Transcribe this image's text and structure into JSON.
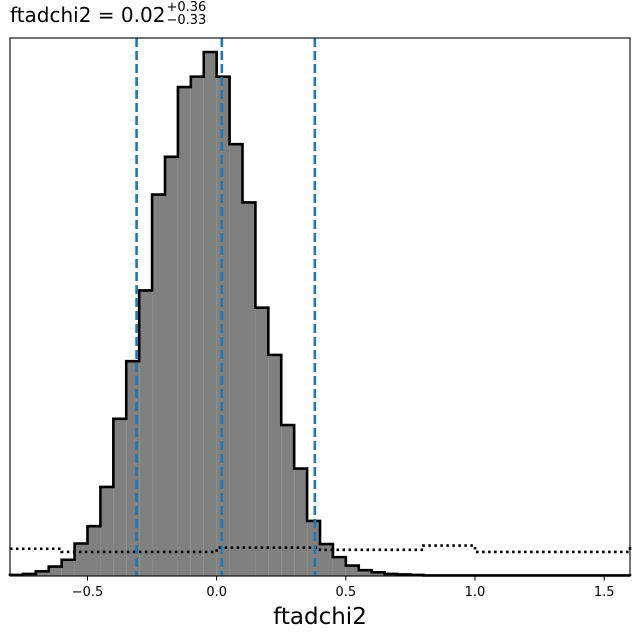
{
  "chart_data": {
    "type": "histogram",
    "title": {
      "name": "ftadchi2 = ",
      "value": "0.02",
      "upper_err": "+0.36",
      "lower_err": "−0.33"
    },
    "xlabel": "ftadchi2",
    "ylabel": "",
    "xlim": [
      -0.8,
      1.6
    ],
    "ylim": [
      0,
      1.0
    ],
    "yticks_visible": false,
    "xticks": [
      {
        "value": -0.5,
        "label": "−0.5"
      },
      {
        "value": 0.0,
        "label": "0.0"
      },
      {
        "value": 0.5,
        "label": "0.5"
      },
      {
        "value": 1.0,
        "label": "1.0"
      },
      {
        "value": 1.5,
        "label": "1.5"
      }
    ],
    "bin_edges": [
      -0.8,
      -0.75,
      -0.7,
      -0.65,
      -0.6,
      -0.55,
      -0.5,
      -0.45,
      -0.4,
      -0.35,
      -0.3,
      -0.25,
      -0.2,
      -0.15,
      -0.1,
      -0.05,
      0.0,
      0.05,
      0.1,
      0.15,
      0.2,
      0.25,
      0.3,
      0.35,
      0.4,
      0.45,
      0.5,
      0.55,
      0.6,
      0.65,
      0.7,
      0.75,
      0.8,
      0.85,
      0.9,
      0.95,
      1.0,
      1.05,
      1.1,
      1.15,
      1.2,
      1.25,
      1.3,
      1.35,
      1.4,
      1.45,
      1.5,
      1.55,
      1.6
    ],
    "series": [
      {
        "style": "filled",
        "fill": "#808080",
        "edgecolor": "#000000",
        "counts": [
          0.002,
          0.004,
          0.009,
          0.018,
          0.031,
          0.062,
          0.095,
          0.17,
          0.3,
          0.41,
          0.545,
          0.728,
          0.8,
          0.933,
          0.953,
          1.0,
          0.953,
          0.824,
          0.713,
          0.512,
          0.422,
          0.288,
          0.205,
          0.105,
          0.061,
          0.036,
          0.02,
          0.011,
          0.007,
          0.004,
          0.003,
          0.002,
          0.001,
          0.001,
          0.001,
          0.001,
          0.001,
          0.001,
          0.001,
          0.001,
          0.001,
          0.001,
          0.001,
          0.001,
          0.001,
          0.001,
          0.001,
          0.001
        ]
      },
      {
        "style": "dotted",
        "edgecolor": "#000000",
        "steps": [
          {
            "x0": -0.8,
            "x1": -0.6,
            "y": 0.052
          },
          {
            "x0": -0.6,
            "x1": -0.475,
            "y": 0.046
          },
          {
            "x0": -0.475,
            "x1": 0.0,
            "y": 0.046
          },
          {
            "x0": 0.0,
            "x1": 0.4,
            "y": 0.054
          },
          {
            "x0": 0.4,
            "x1": 0.8,
            "y": 0.05
          },
          {
            "x0": 0.8,
            "x1": 1.0,
            "y": 0.058
          },
          {
            "x0": 1.0,
            "x1": 1.6,
            "y": 0.046
          }
        ]
      }
    ],
    "vlines": [
      {
        "x": -0.31,
        "color": "#1f77b4",
        "style": "dashed"
      },
      {
        "x": 0.02,
        "color": "#1f77b4",
        "style": "dashed"
      },
      {
        "x": 0.38,
        "color": "#1f77b4",
        "style": "dashed"
      }
    ]
  }
}
